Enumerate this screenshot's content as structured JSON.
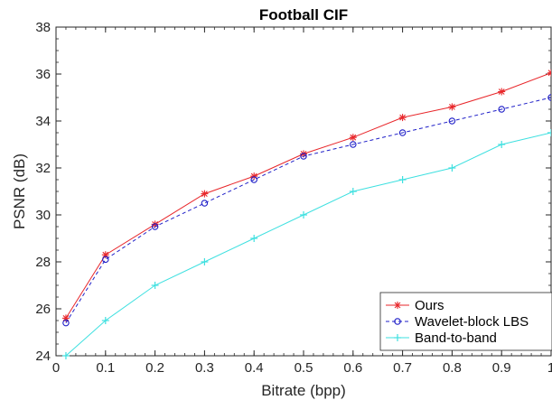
{
  "chart_data": {
    "type": "line",
    "title": "Football CIF",
    "xlabel": "Bitrate (bpp)",
    "ylabel": "PSNR (dB)",
    "xlim": [
      0,
      1
    ],
    "ylim": [
      24,
      38
    ],
    "xticks": [
      0,
      0.1,
      0.2,
      0.3,
      0.4,
      0.5,
      0.6,
      0.7,
      0.8,
      0.9,
      1
    ],
    "xtick_labels": [
      "0",
      "0.1",
      "0.2",
      "0.3",
      "0.4",
      "0.5",
      "0.6",
      "0.7",
      "0.8",
      "0.9",
      "1"
    ],
    "yticks": [
      24,
      26,
      28,
      30,
      32,
      34,
      36,
      38
    ],
    "ytick_labels": [
      "24",
      "26",
      "28",
      "30",
      "32",
      "34",
      "36",
      "38"
    ],
    "grid": false,
    "legend_position": "bottom-right",
    "x": [
      0.02,
      0.1,
      0.2,
      0.3,
      0.4,
      0.5,
      0.6,
      0.7,
      0.8,
      0.9,
      1.0
    ],
    "series": [
      {
        "name": "Ours",
        "values": [
          25.6,
          28.3,
          29.6,
          30.9,
          31.65,
          32.6,
          33.3,
          34.15,
          34.6,
          35.25,
          36.05
        ],
        "color": "#e8262a",
        "marker": "asterisk",
        "line_style": "solid"
      },
      {
        "name": "Wavelet-block LBS",
        "values": [
          25.4,
          28.1,
          29.5,
          30.5,
          31.5,
          32.5,
          33.0,
          33.5,
          34.0,
          34.5,
          35.0
        ],
        "color": "#1f1fc8",
        "marker": "circle",
        "line_style": "dashed"
      },
      {
        "name": "Band-to-band",
        "values": [
          24.0,
          25.5,
          27.0,
          28.0,
          29.0,
          30.0,
          31.0,
          31.5,
          32.0,
          33.0,
          33.5
        ],
        "color": "#3ee0e0",
        "marker": "plus",
        "line_style": "solid"
      }
    ]
  }
}
